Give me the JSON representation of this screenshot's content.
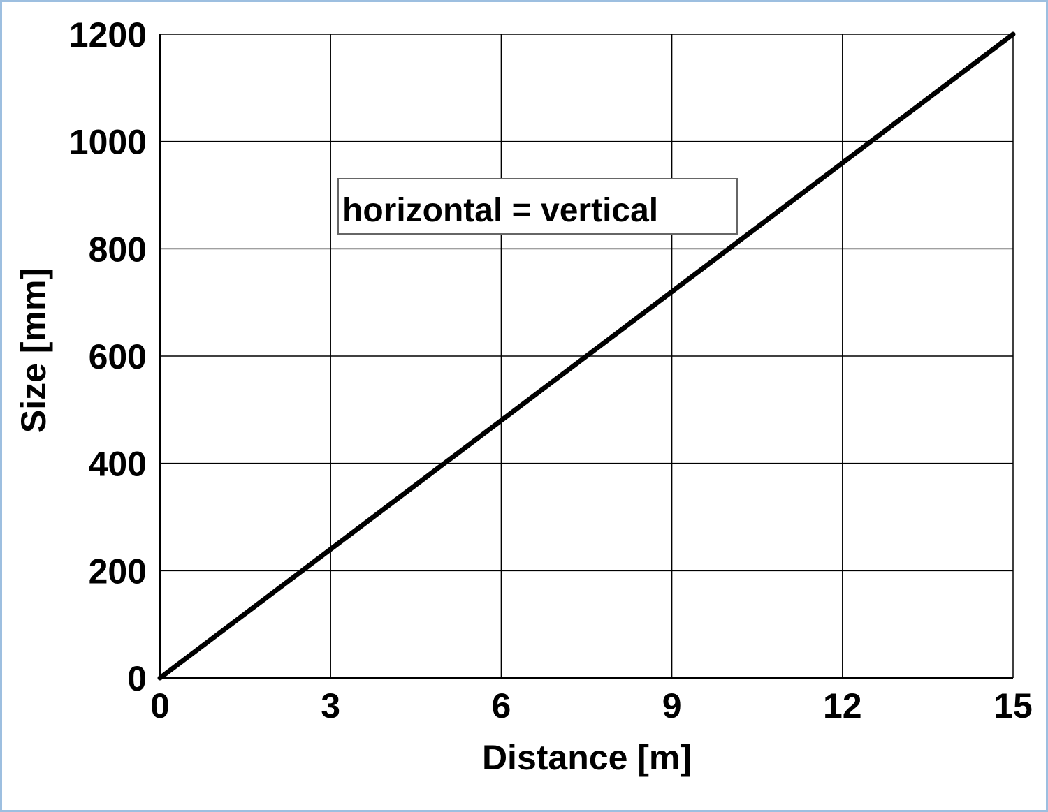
{
  "chart_data": {
    "type": "line",
    "xlabel": "Distance [m]",
    "ylabel": "Size [mm]",
    "xlim": [
      0,
      15
    ],
    "ylim": [
      0,
      1200
    ],
    "x_ticks": [
      "0",
      "3",
      "6",
      "9",
      "12",
      "15"
    ],
    "y_ticks": [
      "0",
      "200",
      "400",
      "600",
      "800",
      "1000",
      "1200"
    ],
    "x_tick_values": [
      0,
      3,
      6,
      9,
      12,
      15
    ],
    "y_tick_values": [
      0,
      200,
      400,
      600,
      800,
      1000,
      1200
    ],
    "grid": true,
    "series": [
      {
        "x": [
          0,
          15
        ],
        "y": [
          0,
          1200
        ],
        "color": "#000000"
      }
    ],
    "annotations": [
      {
        "text": "horizontal = vertical"
      }
    ]
  }
}
